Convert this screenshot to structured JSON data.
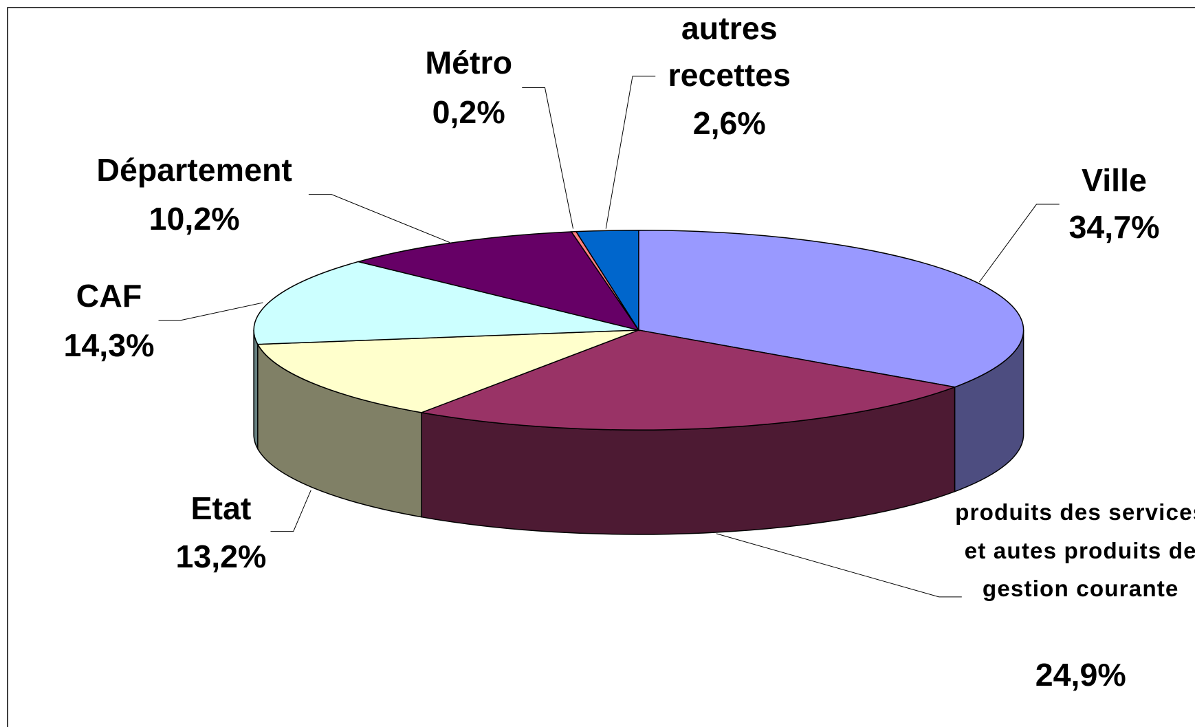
{
  "chart_data": {
    "type": "pie3d",
    "categories": [
      "Ville",
      "produits des services et autes produits de gestion courante",
      "Etat",
      "CAF",
      "Département",
      "Métro",
      "autres recettes"
    ],
    "values": [
      34.7,
      24.9,
      13.2,
      14.3,
      10.2,
      0.2,
      2.6
    ],
    "value_labels": [
      "34,7%",
      "24,9%",
      "13,2%",
      "14,3%",
      "10,2%",
      "0,2%",
      "2,6%"
    ],
    "colors": [
      "#9999ff",
      "#993366",
      "#ffffcc",
      "#ccffff",
      "#660066",
      "#ff8080",
      "#0066cc"
    ]
  }
}
